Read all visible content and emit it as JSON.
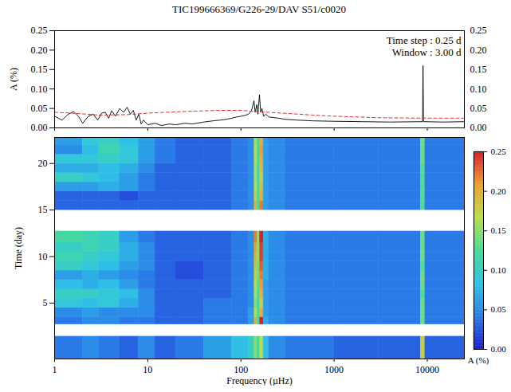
{
  "chart_data": [
    {
      "type": "line",
      "title": "TIC199666369/G226-29/DAV  S51/c0020",
      "ylabel": "A (%)",
      "log": "x",
      "xlim": [
        1,
        25000
      ],
      "ylim": [
        0,
        0.25
      ],
      "xticks": [
        1,
        10,
        100,
        1000,
        10000
      ],
      "yticks": [
        {
          "value": 0,
          "label": "0.00"
        },
        {
          "value": 0.05,
          "label": "0.05"
        },
        {
          "value": 0.1,
          "label": "0.10"
        },
        {
          "value": 0.15,
          "label": "0.15"
        },
        {
          "value": 0.2,
          "label": "0.20"
        },
        {
          "value": 0.25,
          "label": "0.25"
        }
      ],
      "tick_labels": "y",
      "annotations": [
        "Time step : 0.25 d",
        "Window : 3.00 d"
      ],
      "series": [
        {
          "color": "#000000",
          "line_style": "solid",
          "x": [
            1,
            1.2,
            1.4,
            1.6,
            1.8,
            2.0,
            2.3,
            2.6,
            2.9,
            3.2,
            3.5,
            3.8,
            4.1,
            4.5,
            5.0,
            5.5,
            6.0,
            6.5,
            7.0,
            7.5,
            8.0,
            8.5,
            9.0,
            10,
            12,
            14,
            17,
            20,
            25,
            30,
            40,
            50,
            60,
            70,
            80,
            90,
            100,
            110,
            120,
            130,
            138,
            142,
            148,
            152,
            158,
            163,
            168,
            175,
            185,
            200,
            250,
            300,
            400,
            600,
            1000,
            2000,
            4000,
            8900,
            9000,
            9100,
            15000,
            25000
          ],
          "values": [
            0.03,
            0.02,
            0.035,
            0.042,
            0.03,
            0.012,
            0.03,
            0.035,
            0.02,
            0.038,
            0.04,
            0.025,
            0.044,
            0.03,
            0.05,
            0.04,
            0.053,
            0.035,
            0.045,
            0.02,
            0.035,
            0.01,
            0.02,
            0.008,
            0.012,
            0.006,
            0.01,
            0.008,
            0.012,
            0.01,
            0.015,
            0.018,
            0.02,
            0.022,
            0.025,
            0.028,
            0.03,
            0.032,
            0.035,
            0.045,
            0.07,
            0.04,
            0.06,
            0.035,
            0.085,
            0.04,
            0.05,
            0.03,
            0.035,
            0.028,
            0.025,
            0.022,
            0.02,
            0.018,
            0.017,
            0.016,
            0.015,
            0.016,
            0.16,
            0.016,
            0.015,
            0.016
          ]
        },
        {
          "color": "#e03030",
          "line_style": "dashed",
          "x": [
            1,
            1.5,
            3,
            6,
            10,
            30,
            60,
            100,
            200,
            500,
            1000,
            3000,
            10000,
            25000
          ],
          "values": [
            0.04,
            0.038,
            0.033,
            0.034,
            0.038,
            0.043,
            0.045,
            0.045,
            0.04,
            0.034,
            0.03,
            0.026,
            0.025,
            0.025
          ]
        }
      ]
    },
    {
      "type": "heatmap",
      "xlabel": "Frequency (µHz)",
      "ylabel": "Time (day)",
      "log": "x",
      "xlim": [
        1,
        25000
      ],
      "ylim": [
        -1,
        22.8
      ],
      "xticks": [
        1,
        10,
        100,
        1000,
        10000
      ],
      "yticks": [
        5,
        10,
        15,
        20
      ],
      "x_bins": [
        1,
        2,
        3,
        5,
        8,
        12,
        20,
        40,
        80,
        120,
        140,
        150,
        160,
        175,
        200,
        300,
        1000,
        3000,
        8500,
        9500,
        25000
      ],
      "y_bins": [
        [
          -1,
          1.4
        ],
        [
          2.7,
          3.5
        ],
        [
          3.5,
          4.5
        ],
        [
          4.5,
          5.5
        ],
        [
          5.5,
          6.5
        ],
        [
          6.5,
          7.5
        ],
        [
          7.5,
          8.5
        ],
        [
          8.5,
          9.5
        ],
        [
          9.5,
          10.5
        ],
        [
          10.5,
          11.5
        ],
        [
          11.5,
          12.7
        ],
        [
          15,
          16
        ],
        [
          16,
          17
        ],
        [
          17,
          18
        ],
        [
          18,
          19
        ],
        [
          19,
          20
        ],
        [
          20,
          21
        ],
        [
          21,
          22
        ],
        [
          22,
          22.8
        ]
      ],
      "cells": [
        [
          0.04,
          0.05,
          0.04,
          0.03,
          0.05,
          0.03,
          0.04,
          0.06,
          0.08,
          0.1,
          0.15,
          0.12,
          0.17,
          0.08,
          0.05,
          0.04,
          0.03,
          0.03,
          0.18,
          0.03
        ],
        [
          0.04,
          0.05,
          0.05,
          0.04,
          0.04,
          0.03,
          0.03,
          0.04,
          0.04,
          0.06,
          0.2,
          0.12,
          0.25,
          0.07,
          0.05,
          0.04,
          0.04,
          0.04,
          0.14,
          0.04
        ],
        [
          0.05,
          0.06,
          0.05,
          0.05,
          0.05,
          0.03,
          0.03,
          0.04,
          0.04,
          0.06,
          0.17,
          0.12,
          0.2,
          0.06,
          0.05,
          0.04,
          0.04,
          0.04,
          0.14,
          0.04
        ],
        [
          0.09,
          0.08,
          0.09,
          0.07,
          0.05,
          0.03,
          0.03,
          0.04,
          0.04,
          0.05,
          0.15,
          0.11,
          0.18,
          0.06,
          0.05,
          0.04,
          0.04,
          0.04,
          0.14,
          0.04
        ],
        [
          0.1,
          0.1,
          0.09,
          0.08,
          0.05,
          0.03,
          0.03,
          0.03,
          0.04,
          0.05,
          0.16,
          0.12,
          0.2,
          0.06,
          0.05,
          0.04,
          0.04,
          0.04,
          0.13,
          0.04
        ],
        [
          0.08,
          0.07,
          0.08,
          0.06,
          0.04,
          0.03,
          0.03,
          0.03,
          0.04,
          0.05,
          0.17,
          0.13,
          0.21,
          0.06,
          0.05,
          0.04,
          0.04,
          0.04,
          0.14,
          0.04
        ],
        [
          0.06,
          0.07,
          0.06,
          0.05,
          0.04,
          0.03,
          0.02,
          0.03,
          0.04,
          0.05,
          0.18,
          0.14,
          0.22,
          0.07,
          0.05,
          0.04,
          0.04,
          0.04,
          0.14,
          0.04
        ],
        [
          0.1,
          0.09,
          0.08,
          0.06,
          0.05,
          0.03,
          0.02,
          0.03,
          0.04,
          0.05,
          0.19,
          0.14,
          0.23,
          0.07,
          0.05,
          0.04,
          0.04,
          0.04,
          0.13,
          0.04
        ],
        [
          0.11,
          0.1,
          0.09,
          0.07,
          0.05,
          0.03,
          0.03,
          0.03,
          0.04,
          0.05,
          0.2,
          0.15,
          0.24,
          0.07,
          0.05,
          0.04,
          0.04,
          0.04,
          0.14,
          0.04
        ],
        [
          0.1,
          0.11,
          0.1,
          0.07,
          0.05,
          0.03,
          0.03,
          0.03,
          0.04,
          0.05,
          0.21,
          0.15,
          0.24,
          0.07,
          0.05,
          0.04,
          0.04,
          0.04,
          0.14,
          0.04
        ],
        [
          0.12,
          0.11,
          0.1,
          0.06,
          0.04,
          0.03,
          0.03,
          0.03,
          0.04,
          0.05,
          0.22,
          0.15,
          0.25,
          0.07,
          0.05,
          0.04,
          0.04,
          0.04,
          0.14,
          0.04
        ],
        [
          0.03,
          0.03,
          0.03,
          0.03,
          0.03,
          0.03,
          0.03,
          0.03,
          0.04,
          0.05,
          0.2,
          0.12,
          0.22,
          0.06,
          0.05,
          0.04,
          0.04,
          0.04,
          0.13,
          0.04
        ],
        [
          0.03,
          0.03,
          0.03,
          0.02,
          0.03,
          0.03,
          0.03,
          0.03,
          0.04,
          0.05,
          0.18,
          0.12,
          0.2,
          0.06,
          0.05,
          0.04,
          0.04,
          0.04,
          0.13,
          0.04
        ],
        [
          0.06,
          0.06,
          0.07,
          0.06,
          0.04,
          0.03,
          0.03,
          0.03,
          0.04,
          0.05,
          0.17,
          0.12,
          0.19,
          0.06,
          0.05,
          0.04,
          0.04,
          0.04,
          0.13,
          0.04
        ],
        [
          0.1,
          0.09,
          0.08,
          0.06,
          0.04,
          0.03,
          0.03,
          0.03,
          0.04,
          0.05,
          0.16,
          0.11,
          0.18,
          0.06,
          0.05,
          0.04,
          0.04,
          0.04,
          0.13,
          0.04
        ],
        [
          0.07,
          0.07,
          0.08,
          0.07,
          0.05,
          0.03,
          0.03,
          0.03,
          0.04,
          0.05,
          0.16,
          0.11,
          0.19,
          0.06,
          0.05,
          0.04,
          0.04,
          0.04,
          0.13,
          0.04
        ],
        [
          0.09,
          0.09,
          0.1,
          0.09,
          0.06,
          0.04,
          0.03,
          0.03,
          0.04,
          0.05,
          0.17,
          0.12,
          0.2,
          0.06,
          0.05,
          0.04,
          0.04,
          0.04,
          0.14,
          0.04
        ],
        [
          0.05,
          0.08,
          0.11,
          0.09,
          0.06,
          0.04,
          0.03,
          0.03,
          0.04,
          0.05,
          0.17,
          0.12,
          0.21,
          0.06,
          0.05,
          0.04,
          0.04,
          0.04,
          0.14,
          0.04
        ],
        [
          0.06,
          0.09,
          0.1,
          0.08,
          0.06,
          0.04,
          0.03,
          0.03,
          0.04,
          0.05,
          0.16,
          0.12,
          0.2,
          0.06,
          0.05,
          0.04,
          0.04,
          0.04,
          0.14,
          0.04
        ]
      ],
      "colorbar": {
        "label": "A (%)",
        "range": [
          0,
          0.25
        ],
        "ticks": [
          {
            "value": 0,
            "label": "0.00"
          },
          {
            "value": 0.05,
            "label": "0.05"
          },
          {
            "value": 0.1,
            "label": "0.10"
          },
          {
            "value": 0.15,
            "label": "0.15"
          },
          {
            "value": 0.2,
            "label": "0.20"
          },
          {
            "value": 0.25,
            "label": "0.25"
          }
        ]
      }
    }
  ]
}
